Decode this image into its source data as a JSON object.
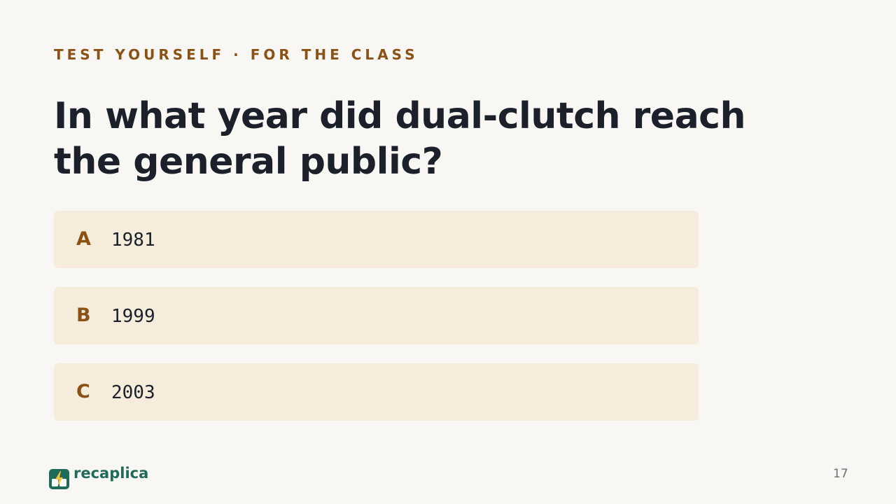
{
  "header": {
    "eyebrow": "TEST YOURSELF · FOR THE CLASS",
    "question": "In what year did dual-clutch reach the general public?"
  },
  "options": [
    {
      "letter": "A",
      "text": "1981"
    },
    {
      "letter": "B",
      "text": "1999"
    },
    {
      "letter": "C",
      "text": "2003"
    }
  ],
  "footer": {
    "brand": "recaplica",
    "page_number": "17"
  }
}
